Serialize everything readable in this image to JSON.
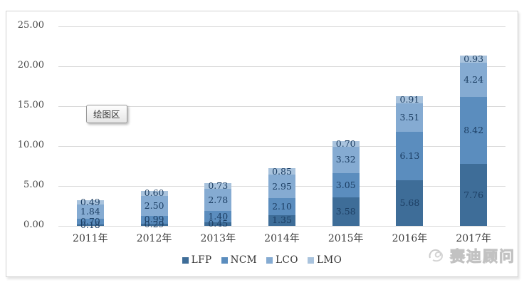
{
  "chart_data": {
    "type": "bar",
    "stacked": true,
    "title": "",
    "xlabel": "",
    "ylabel": "",
    "categories": [
      "2011年",
      "2012年",
      "2013年",
      "2014年",
      "2015年",
      "2016年",
      "2017年"
    ],
    "series": [
      {
        "name": "LFP",
        "color": "#3e6d98",
        "values": [
          0.18,
          0.29,
          0.45,
          1.35,
          3.58,
          5.68,
          7.76
        ]
      },
      {
        "name": "NCM",
        "color": "#5b8dbe",
        "values": [
          0.7,
          0.99,
          1.4,
          2.1,
          3.05,
          6.13,
          8.42
        ]
      },
      {
        "name": "LCO",
        "color": "#85abd2",
        "values": [
          1.84,
          2.5,
          2.78,
          2.95,
          3.32,
          3.51,
          4.24
        ]
      },
      {
        "name": "LMO",
        "color": "#a9c3dd",
        "values": [
          0.49,
          0.6,
          0.73,
          0.85,
          0.7,
          0.91,
          0.93
        ]
      }
    ],
    "ylim": [
      0,
      25
    ],
    "ytick_labels": [
      "25.00",
      "20.00",
      "15.00",
      "10.00",
      "5.00",
      "0.00"
    ],
    "ytick_values": [
      25,
      20,
      15,
      10,
      5,
      0
    ],
    "grid": true,
    "legend_position": "bottom",
    "data_labels": true,
    "data_label_color": "#1c3e63",
    "gridline_color": "#d9d9d9"
  },
  "plot_tooltip": {
    "label": "绘图区"
  },
  "watermark": {
    "text": "赛迪顾问",
    "logo": "ccid-swirl-logo"
  }
}
